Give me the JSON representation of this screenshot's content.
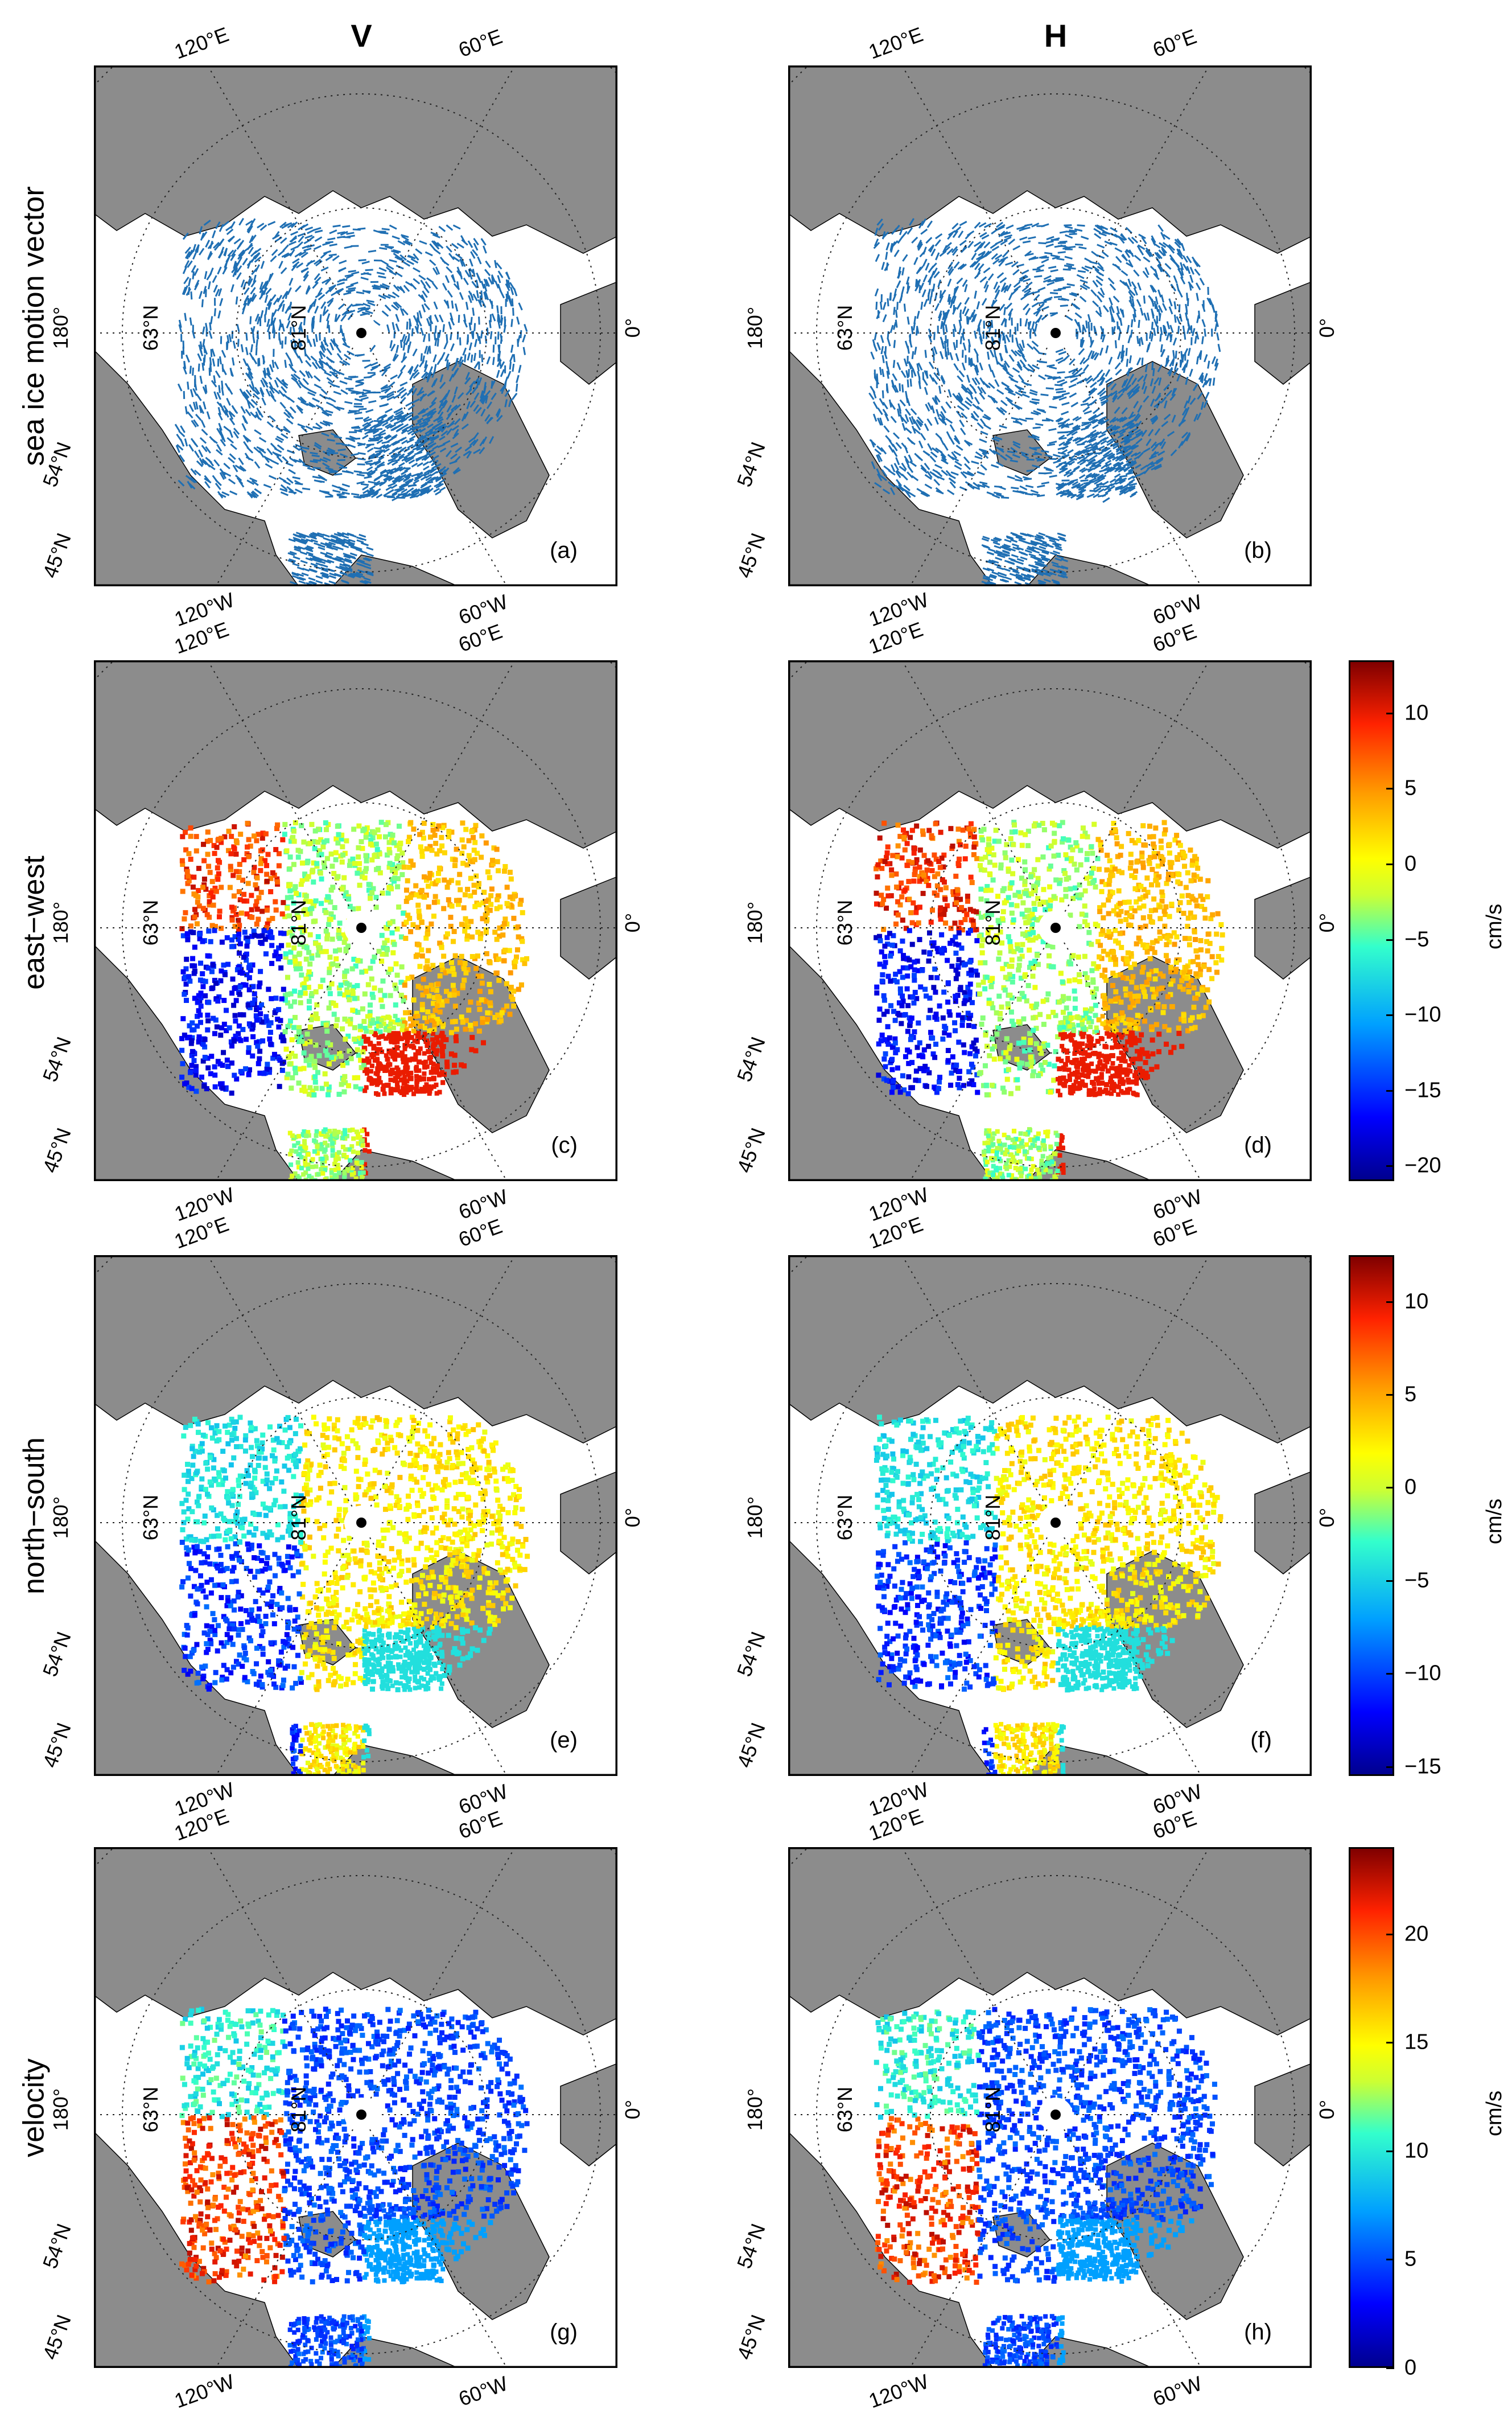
{
  "columns": [
    {
      "title": "V"
    },
    {
      "title": "H"
    }
  ],
  "rows": [
    {
      "label": "sea ice motion vector",
      "panels": [
        "(a)",
        "(b)"
      ],
      "kind": "vector"
    },
    {
      "label": "east−west",
      "panels": [
        "(c)",
        "(d)"
      ],
      "kind": "scalar"
    },
    {
      "label": "north−south",
      "panels": [
        "(e)",
        "(f)"
      ],
      "kind": "scalar"
    },
    {
      "label": "velocity",
      "panels": [
        "(g)",
        "(h)"
      ],
      "kind": "speed"
    }
  ],
  "map_ticks": {
    "lon_120E": "120°E",
    "lon_60E": "60°E",
    "lon_180": "180°",
    "lon_0": "0°",
    "lon_120W": "120°W",
    "lon_60W": "60°W",
    "lat_54N": "54°N",
    "lat_45N": "45°N",
    "lat_63N": "63°N",
    "lat_81N": "81°N"
  },
  "colorbars": [
    {
      "row": "east−west",
      "unit": "cm/s",
      "ticks": [
        "10",
        "5",
        "0",
        "−5",
        "−10",
        "−15",
        "−20"
      ],
      "range": [
        -21,
        13.5
      ]
    },
    {
      "row": "north−south",
      "unit": "cm/s",
      "ticks": [
        "10",
        "5",
        "0",
        "−5",
        "−10",
        "−15"
      ],
      "range": [
        -15.5,
        12.5
      ]
    },
    {
      "row": "velocity",
      "unit": "cm/s",
      "ticks": [
        "20",
        "15",
        "10",
        "5",
        "0"
      ],
      "range": [
        0,
        24
      ]
    }
  ],
  "colors": {
    "land": "#8c8c8c",
    "frame": "#000000",
    "vector": "#1f6fb3",
    "grid": "#222222"
  }
}
